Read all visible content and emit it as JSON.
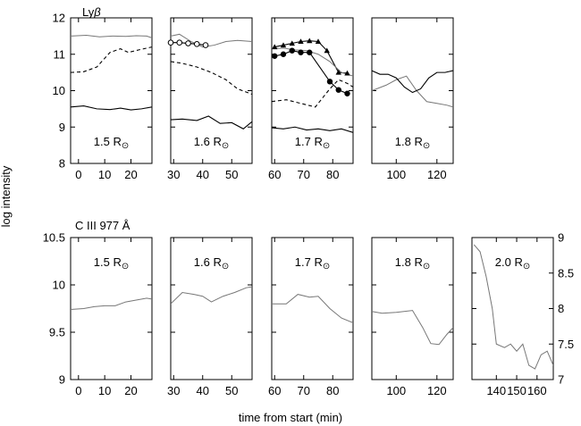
{
  "figure": {
    "ylabel": "log intensity",
    "xlabel": "time from start (min)",
    "rows": [
      {
        "title": "Lyβ",
        "title_main": "Ly",
        "title_greek": "β"
      },
      {
        "title": "C III 977 Å"
      }
    ]
  },
  "chart_data": [
    {
      "id": "lyb-1.5",
      "type": "line",
      "row": 0,
      "label": "1.5 R⊙",
      "xlim": [
        -3,
        28
      ],
      "xticks": [
        0,
        10,
        20
      ],
      "ylim": [
        8,
        12
      ],
      "yticks": [
        8,
        9,
        10,
        11,
        12
      ],
      "yaxis": "left",
      "series": [
        {
          "style": "gray",
          "x": [
            -3,
            3,
            8,
            13,
            18,
            22,
            26,
            28
          ],
          "y": [
            11.5,
            11.52,
            11.48,
            11.5,
            11.49,
            11.51,
            11.5,
            11.45
          ]
        },
        {
          "style": "dashed",
          "x": [
            -3,
            2,
            7,
            12,
            16,
            19,
            23,
            28
          ],
          "y": [
            10.5,
            10.52,
            10.65,
            11.05,
            11.15,
            11.05,
            11.12,
            11.2
          ]
        },
        {
          "style": "solid",
          "x": [
            -3,
            2,
            7,
            12,
            16,
            20,
            24,
            28
          ],
          "y": [
            9.55,
            9.58,
            9.5,
            9.48,
            9.52,
            9.47,
            9.5,
            9.55
          ]
        }
      ]
    },
    {
      "id": "lyb-1.6",
      "type": "line",
      "row": 0,
      "label": "1.6 R⊙",
      "xlim": [
        29,
        57
      ],
      "xticks": [
        30,
        40,
        50
      ],
      "ylim": [
        8,
        12
      ],
      "yticks": [
        8,
        9,
        10,
        11,
        12
      ],
      "yaxis": "none",
      "series": [
        {
          "style": "gray",
          "x": [
            29,
            32,
            36,
            40,
            44,
            48,
            52,
            57
          ],
          "y": [
            11.5,
            11.55,
            11.35,
            11.2,
            11.25,
            11.35,
            11.38,
            11.35
          ]
        },
        {
          "style": "open-markers",
          "x": [
            29,
            32,
            35,
            38,
            41
          ],
          "y": [
            11.32,
            11.32,
            11.3,
            11.28,
            11.25
          ]
        },
        {
          "style": "dashed",
          "x": [
            29,
            33,
            38,
            43,
            48,
            52,
            57
          ],
          "y": [
            10.8,
            10.75,
            10.65,
            10.5,
            10.3,
            10.05,
            9.9
          ]
        },
        {
          "style": "solid",
          "x": [
            29,
            33,
            38,
            42,
            46,
            50,
            54,
            57
          ],
          "y": [
            9.2,
            9.22,
            9.18,
            9.3,
            9.1,
            9.12,
            8.95,
            9.15
          ]
        }
      ]
    },
    {
      "id": "lyb-1.7",
      "type": "line",
      "row": 0,
      "label": "1.7 R⊙",
      "xlim": [
        59,
        87
      ],
      "xticks": [
        60,
        70,
        80
      ],
      "ylim": [
        8,
        12
      ],
      "yticks": [
        8,
        9,
        10,
        11,
        12
      ],
      "yaxis": "none",
      "series": [
        {
          "style": "triangles",
          "x": [
            60,
            63,
            66,
            69,
            72,
            75,
            78,
            82,
            85
          ],
          "y": [
            11.2,
            11.25,
            11.3,
            11.35,
            11.37,
            11.35,
            11.1,
            10.5,
            10.48
          ]
        },
        {
          "style": "gray",
          "x": [
            59,
            63,
            67,
            71,
            75,
            79,
            83,
            87
          ],
          "y": [
            11.15,
            11.17,
            11.12,
            11.1,
            11.0,
            10.8,
            10.5,
            10.4
          ]
        },
        {
          "style": "filled-circles",
          "x": [
            60,
            63,
            66,
            69,
            72,
            79,
            82,
            85
          ],
          "y": [
            10.95,
            11.0,
            11.1,
            11.05,
            11.05,
            10.25,
            10.02,
            9.92
          ]
        },
        {
          "style": "dashed",
          "x": [
            59,
            64,
            69,
            74,
            79,
            82,
            85,
            87
          ],
          "y": [
            9.7,
            9.75,
            9.65,
            9.55,
            10.05,
            10.3,
            10.2,
            10.1
          ]
        },
        {
          "style": "solid",
          "x": [
            59,
            63,
            67,
            71,
            75,
            79,
            83,
            87
          ],
          "y": [
            8.98,
            8.95,
            9.0,
            8.92,
            8.95,
            8.9,
            8.95,
            8.85
          ]
        }
      ]
    },
    {
      "id": "lyb-1.8",
      "type": "line",
      "row": 0,
      "label": "1.8 R⊙",
      "xlim": [
        88,
        128
      ],
      "xticks": [
        100,
        120
      ],
      "ylim": [
        8,
        12
      ],
      "yticks": [
        8,
        9,
        10,
        11,
        12
      ],
      "yaxis": "none",
      "series": [
        {
          "style": "gray",
          "x": [
            88,
            95,
            100,
            105,
            110,
            115,
            120,
            125,
            128
          ],
          "y": [
            10.0,
            10.15,
            10.3,
            10.4,
            10.0,
            9.7,
            9.65,
            9.6,
            9.55
          ]
        },
        {
          "style": "solid",
          "x": [
            88,
            92,
            96,
            100,
            104,
            108,
            112,
            116,
            120,
            124,
            128
          ],
          "y": [
            10.55,
            10.45,
            10.45,
            10.35,
            10.1,
            9.95,
            10.05,
            10.35,
            10.5,
            10.5,
            10.55
          ]
        }
      ]
    },
    {
      "id": "ciii-1.5",
      "type": "line",
      "row": 1,
      "label": "1.5 R⊙",
      "xlim": [
        -3,
        28
      ],
      "xticks": [
        0,
        10,
        20
      ],
      "ylim": [
        9,
        10.5
      ],
      "yticks": [
        9,
        9.5,
        10,
        10.5
      ],
      "yaxis": "left",
      "series": [
        {
          "style": "gray",
          "x": [
            -3,
            2,
            6,
            10,
            14,
            18,
            22,
            26,
            28
          ],
          "y": [
            9.74,
            9.75,
            9.77,
            9.78,
            9.78,
            9.82,
            9.84,
            9.86,
            9.85
          ]
        }
      ]
    },
    {
      "id": "ciii-1.6",
      "type": "line",
      "row": 1,
      "label": "1.6 R⊙",
      "xlim": [
        29,
        57
      ],
      "xticks": [
        30,
        40,
        50
      ],
      "ylim": [
        9,
        10.5
      ],
      "yticks": [
        9,
        9.5,
        10,
        10.5
      ],
      "yaxis": "none",
      "series": [
        {
          "style": "gray",
          "x": [
            29,
            33,
            37,
            40,
            43,
            47,
            51,
            55,
            57
          ],
          "y": [
            9.8,
            9.92,
            9.9,
            9.88,
            9.82,
            9.88,
            9.92,
            9.97,
            9.98
          ]
        }
      ]
    },
    {
      "id": "ciii-1.7",
      "type": "line",
      "row": 1,
      "label": "1.7 R⊙",
      "xlim": [
        59,
        87
      ],
      "xticks": [
        60,
        70,
        80
      ],
      "ylim": [
        9,
        10.5
      ],
      "yticks": [
        9,
        9.5,
        10,
        10.5
      ],
      "yaxis": "none",
      "series": [
        {
          "style": "gray",
          "x": [
            59,
            64,
            68,
            72,
            75,
            79,
            83,
            87
          ],
          "y": [
            9.8,
            9.8,
            9.9,
            9.87,
            9.88,
            9.75,
            9.65,
            9.6
          ]
        }
      ]
    },
    {
      "id": "ciii-1.8",
      "type": "line",
      "row": 1,
      "label": "1.8 R⊙",
      "xlim": [
        88,
        128
      ],
      "xticks": [
        100,
        120
      ],
      "ylim": [
        9,
        10.5
      ],
      "yticks": [
        9,
        9.5,
        10,
        10.5
      ],
      "yaxis": "none",
      "series": [
        {
          "style": "gray",
          "x": [
            88,
            93,
            100,
            108,
            113,
            117,
            121,
            125,
            128
          ],
          "y": [
            9.72,
            9.7,
            9.71,
            9.73,
            9.55,
            9.38,
            9.37,
            9.48,
            9.55
          ]
        }
      ]
    },
    {
      "id": "ciii-2.0",
      "type": "line",
      "row": 1,
      "label": "2.0 R⊙",
      "xlim": [
        128,
        168
      ],
      "xticks": [
        140,
        150,
        160
      ],
      "ylim": [
        7,
        9
      ],
      "yticks": [
        7,
        7.5,
        8,
        8.5,
        9
      ],
      "yaxis": "right",
      "series": [
        {
          "style": "gray",
          "x": [
            129,
            132,
            135,
            138,
            140,
            144,
            147,
            150,
            153,
            156,
            159,
            162,
            165,
            168
          ],
          "y": [
            8.9,
            8.8,
            8.45,
            8.0,
            7.5,
            7.45,
            7.5,
            7.4,
            7.5,
            7.2,
            7.15,
            7.35,
            7.4,
            7.2
          ]
        }
      ]
    }
  ]
}
